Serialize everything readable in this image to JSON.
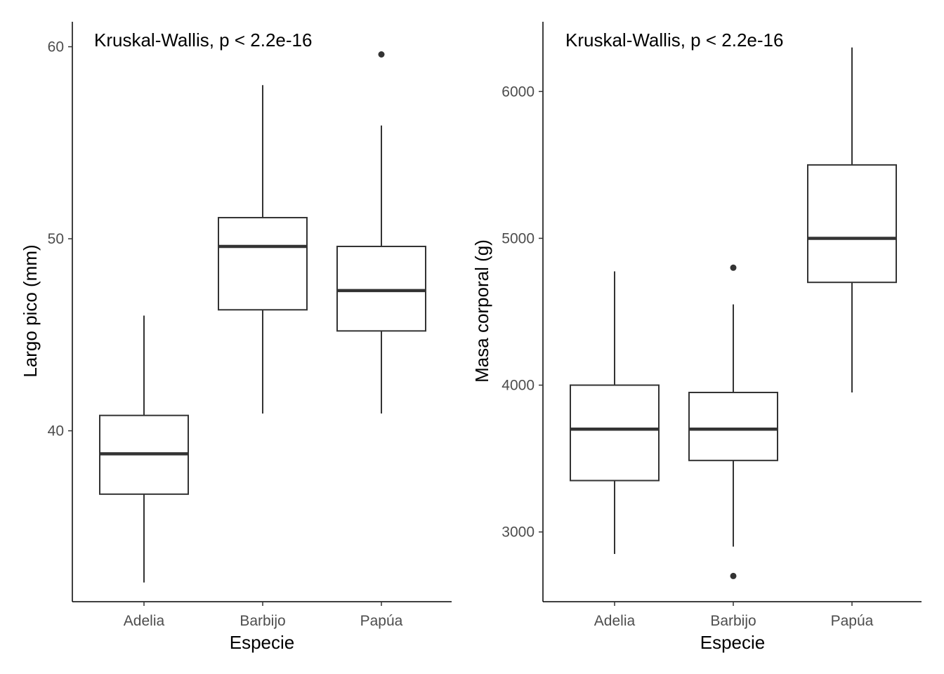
{
  "chart_data": [
    {
      "type": "box",
      "categories": [
        "Adelia",
        "Barbijo",
        "Papúa"
      ],
      "xlabel": "Especie",
      "ylabel": "Largo pico (mm)",
      "annotation": "Kruskal-Wallis, p < 2.2e-16",
      "ylim": [
        31.1,
        61.3
      ],
      "yticks": [
        40,
        50,
        60
      ],
      "boxes": [
        {
          "category": "Adelia",
          "whisker_low": 32.1,
          "q1": 36.7,
          "median": 38.8,
          "q3": 40.8,
          "whisker_high": 46.0,
          "outliers": []
        },
        {
          "category": "Barbijo",
          "whisker_low": 40.9,
          "q1": 46.3,
          "median": 49.6,
          "q3": 51.1,
          "whisker_high": 58.0,
          "outliers": []
        },
        {
          "category": "Papúa",
          "whisker_low": 40.9,
          "q1": 45.2,
          "median": 47.3,
          "q3": 49.6,
          "whisker_high": 55.9,
          "outliers": [
            59.6
          ]
        }
      ],
      "grid": false
    },
    {
      "type": "box",
      "categories": [
        "Adelia",
        "Barbijo",
        "Papúa"
      ],
      "xlabel": "Especie",
      "ylabel": "Masa corporal (g)",
      "annotation": "Kruskal-Wallis, p < 2.2e-16",
      "ylim": [
        2525,
        6475
      ],
      "yticks": [
        3000,
        4000,
        5000,
        6000
      ],
      "boxes": [
        {
          "category": "Adelia",
          "whisker_low": 2850,
          "q1": 3350,
          "median": 3700,
          "q3": 4000,
          "whisker_high": 4775,
          "outliers": []
        },
        {
          "category": "Barbijo",
          "whisker_low": 2900,
          "q1": 3487,
          "median": 3700,
          "q3": 3950,
          "whisker_high": 4550,
          "outliers": [
            4800,
            2700
          ]
        },
        {
          "category": "Papúa",
          "whisker_low": 3950,
          "q1": 4700,
          "median": 5000,
          "q3": 5500,
          "whisker_high": 6300,
          "outliers": []
        }
      ],
      "grid": false
    }
  ]
}
